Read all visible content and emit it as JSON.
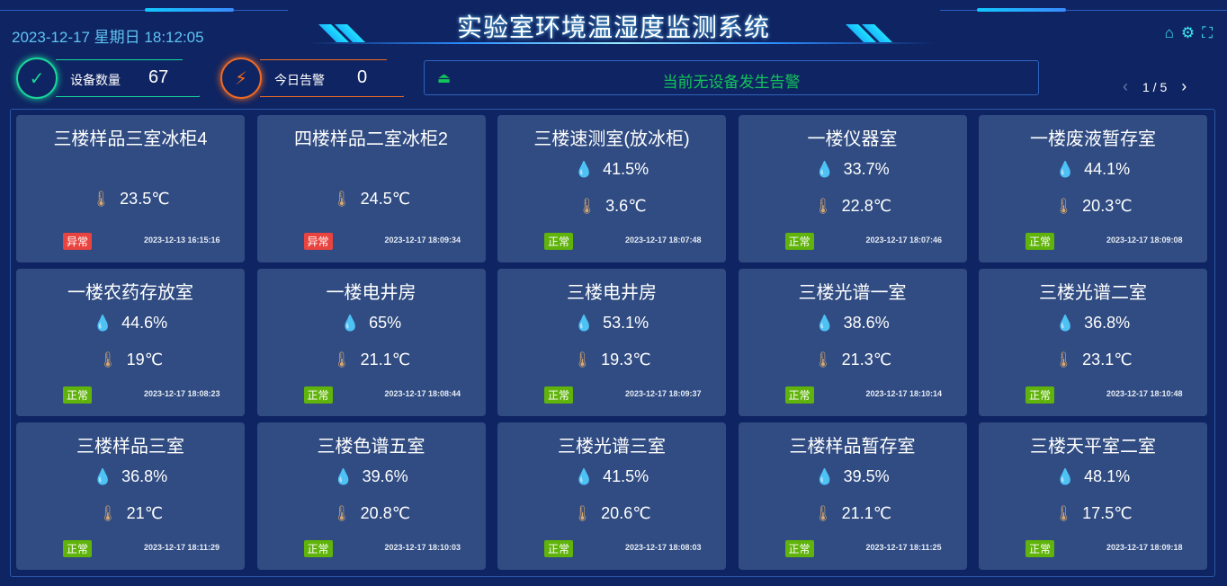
{
  "header": {
    "title": "实验室环境温湿度监测系统",
    "datetime": "2023-12-17 星期日 18:12:05",
    "icons": [
      "home-icon",
      "gear-icon",
      "fullscreen-icon"
    ]
  },
  "stats": [
    {
      "label": "设备数量",
      "value": "67",
      "color": "#18d99a",
      "icon": "check-cycle-icon"
    },
    {
      "label": "今日告警",
      "value": "0",
      "color": "#f06a22",
      "icon": "alarm-light-icon"
    }
  ],
  "alarm_bar": {
    "text": "当前无设备发生告警",
    "icon": "alarm-light-icon",
    "color": "#12c45a"
  },
  "pager": {
    "text": "1 / 5"
  },
  "colors": {
    "background": "#0f2462",
    "card": "#304c82",
    "normal": "#5fb30a",
    "abnormal": "#e9433f",
    "humidity": "#2ee4f5",
    "thermometer": "#d9a870"
  },
  "devices": [
    {
      "name": "三楼样品三室冰柜4",
      "humidity": null,
      "temperature": "23.5℃",
      "status": "异常",
      "time": "2023-12-13 16:15:16"
    },
    {
      "name": "四楼样品二室冰柜2",
      "humidity": null,
      "temperature": "24.5℃",
      "status": "异常",
      "time": "2023-12-17 18:09:34"
    },
    {
      "name": "三楼速测室(放冰柜)",
      "humidity": "41.5%",
      "temperature": "3.6℃",
      "status": "正常",
      "time": "2023-12-17 18:07:48"
    },
    {
      "name": "一楼仪器室",
      "humidity": "33.7%",
      "temperature": "22.8℃",
      "status": "正常",
      "time": "2023-12-17 18:07:46"
    },
    {
      "name": "一楼废液暂存室",
      "humidity": "44.1%",
      "temperature": "20.3℃",
      "status": "正常",
      "time": "2023-12-17 18:09:08"
    },
    {
      "name": "一楼农药存放室",
      "humidity": "44.6%",
      "temperature": "19℃",
      "status": "正常",
      "time": "2023-12-17 18:08:23"
    },
    {
      "name": "一楼电井房",
      "humidity": "65%",
      "temperature": "21.1℃",
      "status": "正常",
      "time": "2023-12-17 18:08:44"
    },
    {
      "name": "三楼电井房",
      "humidity": "53.1%",
      "temperature": "19.3℃",
      "status": "正常",
      "time": "2023-12-17 18:09:37"
    },
    {
      "name": "三楼光谱一室",
      "humidity": "38.6%",
      "temperature": "21.3℃",
      "status": "正常",
      "time": "2023-12-17 18:10:14"
    },
    {
      "name": "三楼光谱二室",
      "humidity": "36.8%",
      "temperature": "23.1℃",
      "status": "正常",
      "time": "2023-12-17 18:10:48"
    },
    {
      "name": "三楼样品三室",
      "humidity": "36.8%",
      "temperature": "21℃",
      "status": "正常",
      "time": "2023-12-17 18:11:29"
    },
    {
      "name": "三楼色谱五室",
      "humidity": "39.6%",
      "temperature": "20.8℃",
      "status": "正常",
      "time": "2023-12-17 18:10:03"
    },
    {
      "name": "三楼光谱三室",
      "humidity": "41.5%",
      "temperature": "20.6℃",
      "status": "正常",
      "time": "2023-12-17 18:08:03"
    },
    {
      "name": "三楼样品暂存室",
      "humidity": "39.5%",
      "temperature": "21.1℃",
      "status": "正常",
      "time": "2023-12-17 18:11:25"
    },
    {
      "name": "三楼天平室二室",
      "humidity": "48.1%",
      "temperature": "17.5℃",
      "status": "正常",
      "time": "2023-12-17 18:09:18"
    }
  ]
}
